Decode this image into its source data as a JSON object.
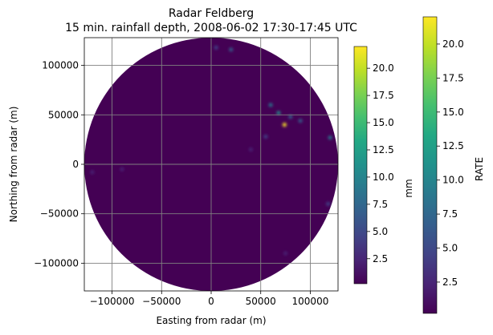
{
  "chart_data": {
    "type": "heatmap",
    "title": "Radar Feldberg",
    "subtitle": "15 min. rainfall depth, 2008-06-02 17:30-17:45 UTC",
    "xlabel": "Easting from radar (m)",
    "ylabel": "Northing from radar (m)",
    "xlim": [
      -128000,
      128000
    ],
    "ylim": [
      -128000,
      128000
    ],
    "xticks": [
      -100000,
      -50000,
      0,
      50000,
      100000
    ],
    "xtick_labels": [
      "−100000",
      "−50000",
      "0",
      "50000",
      "100000"
    ],
    "yticks": [
      -100000,
      -50000,
      0,
      50000,
      100000
    ],
    "ytick_labels": [
      "−100000",
      "−50000",
      "0",
      "50000",
      "100000"
    ],
    "grid": true,
    "radar_range_m": 128000,
    "background_value": 0,
    "colormap": "viridis",
    "rain_cells": [
      {
        "x": 60000,
        "y": 60000,
        "value": 9
      },
      {
        "x": 68000,
        "y": 52000,
        "value": 12
      },
      {
        "x": 74000,
        "y": 40000,
        "value": 21
      },
      {
        "x": 80000,
        "y": 48000,
        "value": 7
      },
      {
        "x": 55000,
        "y": 28000,
        "value": 5
      },
      {
        "x": 90000,
        "y": 44000,
        "value": 6
      },
      {
        "x": 120000,
        "y": 27000,
        "value": 8
      },
      {
        "x": 5000,
        "y": 118000,
        "value": 5
      },
      {
        "x": 20000,
        "y": 116000,
        "value": 6
      },
      {
        "x": -120000,
        "y": -8000,
        "value": 3
      },
      {
        "x": -90000,
        "y": -5000,
        "value": 2
      },
      {
        "x": 118000,
        "y": -40000,
        "value": 4
      },
      {
        "x": 40000,
        "y": 15000,
        "value": 3
      },
      {
        "x": 75000,
        "y": -90000,
        "value": 3
      }
    ],
    "colorbars": [
      {
        "label": "mm",
        "range": [
          0.2,
          22
        ],
        "ticks": [
          2.5,
          5.0,
          7.5,
          10.0,
          12.5,
          15.0,
          17.5,
          20.0
        ],
        "tick_labels": [
          "2.5",
          "5.0",
          "7.5",
          "10.0",
          "12.5",
          "15.0",
          "17.5",
          "20.0"
        ]
      },
      {
        "label": "RATE",
        "range": [
          0.2,
          22
        ],
        "ticks": [
          2.5,
          5.0,
          7.5,
          10.0,
          12.5,
          15.0,
          17.5,
          20.0
        ],
        "tick_labels": [
          "2.5",
          "5.0",
          "7.5",
          "10.0",
          "12.5",
          "15.0",
          "17.5",
          "20.0"
        ]
      }
    ]
  }
}
